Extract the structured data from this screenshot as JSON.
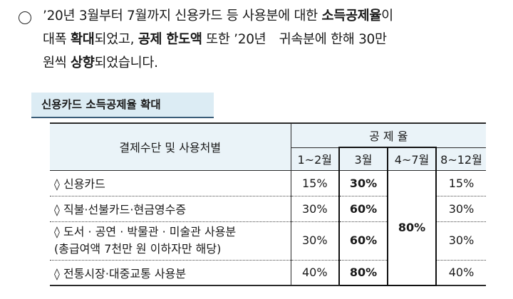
{
  "intro": {
    "bullet_icon": "hollow-circle-icon",
    "line1_a": "’20년 3월부터 7월까지 신용카드 등 사용분에 대한 ",
    "line1_b": "소득공제율",
    "line1_c": "이",
    "line2_a": "대폭 ",
    "line2_b": "확대",
    "line2_c": "되었고, ",
    "line2_d": "공제 한도액",
    "line2_e": " 또한 ’20년　귀속분에 한해 30만",
    "line3_a": "원씩 ",
    "line3_b": "상향",
    "line3_c": "되었습니다."
  },
  "section_title": "신용카드 소득공제율 확대",
  "table": {
    "col_header_method": "결제수단 및 사용처별",
    "col_header_rate": "공 제 율",
    "periods": [
      "1~2월",
      "3월",
      "4~7월",
      "8~12월"
    ],
    "rows": [
      {
        "label": "◊  신용카드",
        "label2": "",
        "p1": "15%",
        "p2": "30%",
        "p4": "15%"
      },
      {
        "label": "◊  직불·선불카드·현금영수증",
        "label2": "",
        "p1": "30%",
        "p2": "60%",
        "p4": "30%"
      },
      {
        "label": "◊  도서 · 공연 · 박물관 · 미술관 사용분",
        "label2": "(총급여액 7천만 원 이하자만 해당)",
        "p1": "30%",
        "p2": "60%",
        "p4": "30%"
      },
      {
        "label": "◊  전통시장·대중교통 사용분",
        "label2": "",
        "p1": "40%",
        "p2": "80%",
        "p4": "40%"
      }
    ],
    "merged_rate_apr_jul": "80%"
  }
}
